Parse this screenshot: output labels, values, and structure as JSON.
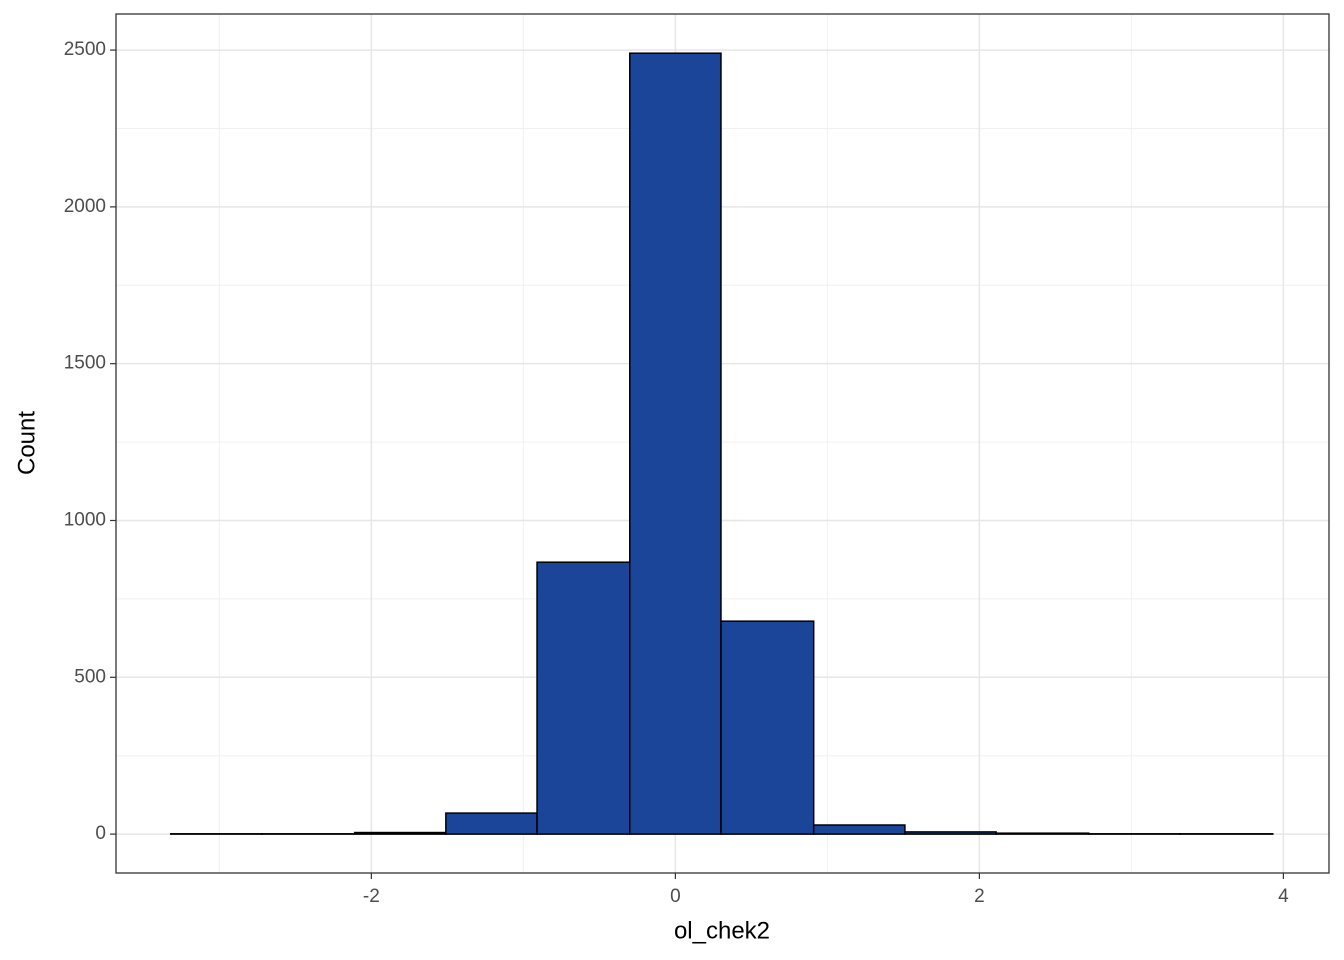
{
  "chart_data": {
    "type": "histogram",
    "x_label": "ol_chek2",
    "y_label": "Count",
    "bins": [
      -3.32,
      -2.72,
      -2.11,
      -1.51,
      -0.91,
      -0.3,
      0.3,
      0.91,
      1.51,
      2.11,
      2.72,
      3.32,
      3.93
    ],
    "values": [
      1,
      1,
      5,
      67,
      867,
      2490,
      679,
      29,
      7,
      3,
      1,
      1
    ],
    "color": "#1a4599",
    "xlim": [
      -3.68,
      4.3
    ],
    "ylim": [
      -124,
      2615
    ],
    "xticks": [
      -2,
      0,
      2,
      4
    ],
    "yticks": [
      0,
      500,
      1000,
      1500,
      2000,
      2500
    ],
    "grid": true
  }
}
